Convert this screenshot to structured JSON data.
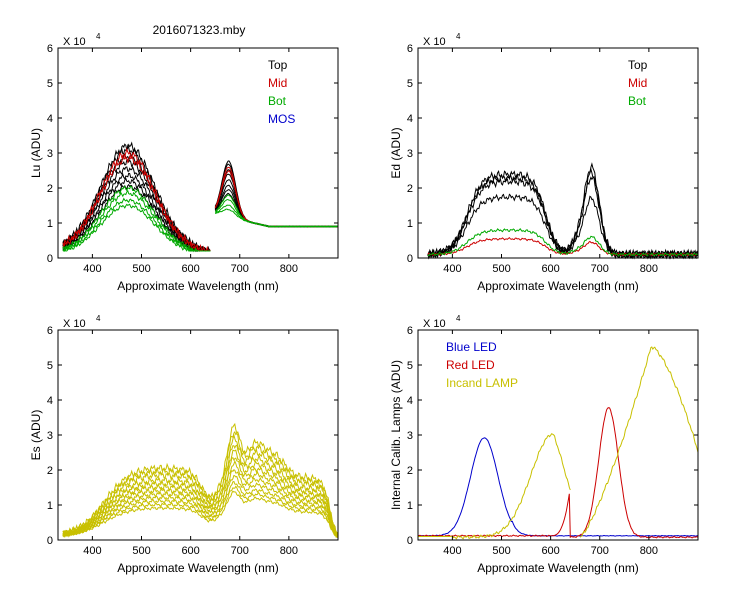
{
  "figure_title": "2016071323.mby",
  "chart_data": [
    {
      "id": "lu",
      "type": "line",
      "ylabel": "Lu (ADU)",
      "xlabel": "Approximate Wavelength (nm)",
      "multiplier": "X 10",
      "exponent": "4",
      "xlim": [
        330,
        900
      ],
      "ylim": [
        0,
        6
      ],
      "xticks": [
        400,
        500,
        600,
        700,
        800
      ],
      "yticks": [
        0,
        1,
        2,
        3,
        4,
        5,
        6
      ],
      "legend": [
        {
          "label": "Top",
          "color": "#000000"
        },
        {
          "label": "Mid",
          "color": "#cc0000"
        },
        {
          "label": "Bot",
          "color": "#00aa00"
        },
        {
          "label": "MOS",
          "color": "#0000cc"
        }
      ],
      "series": [
        {
          "name": "Top",
          "color": "#000000",
          "count": 8,
          "amplitudes": [
            3.2,
            3.1,
            2.9,
            2.75,
            2.55,
            2.35,
            2.2,
            2.05
          ]
        },
        {
          "name": "Mid",
          "color": "#cc0000",
          "count": 2,
          "amplitudes": [
            3.0,
            2.85
          ]
        },
        {
          "name": "Bot",
          "color": "#00aa00",
          "count": 4,
          "amplitudes": [
            2.0,
            1.85,
            1.65,
            1.5
          ]
        }
      ],
      "band1": {
        "start": 340,
        "end": 640,
        "peak": 470
      },
      "band2": {
        "start": 650,
        "end": 900,
        "peak": 680,
        "base": 0.9
      }
    },
    {
      "id": "ed",
      "type": "line",
      "ylabel": "Ed  (ADU)",
      "xlabel": "Approximate Wavelength (nm)",
      "multiplier": "X 10",
      "exponent": "4",
      "xlim": [
        330,
        900
      ],
      "ylim": [
        0,
        6
      ],
      "xticks": [
        400,
        500,
        600,
        700,
        800
      ],
      "yticks": [
        0,
        1,
        2,
        3,
        4,
        5,
        6
      ],
      "legend": [
        {
          "label": "Top",
          "color": "#000000"
        },
        {
          "label": "Mid",
          "color": "#cc0000"
        },
        {
          "label": "Bot",
          "color": "#00aa00"
        }
      ],
      "series": [
        {
          "name": "Top",
          "color": "#000000",
          "count": 4,
          "plateaus": [
            2.3,
            2.2,
            2.1,
            1.65
          ],
          "peaks": [
            2.5,
            2.35,
            2.2,
            1.6
          ]
        },
        {
          "name": "Mid",
          "color": "#cc0000",
          "count": 1,
          "plateaus": [
            0.45
          ],
          "peaks": [
            0.35
          ]
        },
        {
          "name": "Bot",
          "color": "#00aa00",
          "count": 1,
          "plateaus": [
            0.7
          ],
          "peaks": [
            0.5
          ]
        }
      ]
    },
    {
      "id": "es",
      "type": "line",
      "ylabel": "Es  (ADU)",
      "xlabel": "Approximate Wavelength (nm)",
      "multiplier": "X 10",
      "exponent": "4",
      "xlim": [
        330,
        900
      ],
      "ylim": [
        0,
        6
      ],
      "xticks": [
        400,
        500,
        600,
        700,
        800
      ],
      "yticks": [
        0,
        1,
        2,
        3,
        4,
        5,
        6
      ],
      "legend": [],
      "series": [
        {
          "name": "Es",
          "color": "#c8c000",
          "count": 12,
          "plateaus": [
            1.95,
            1.85,
            1.75,
            1.6,
            1.5,
            1.4,
            1.3,
            1.2,
            1.1,
            1.0,
            0.9,
            0.8
          ],
          "peaks": [
            3.5,
            3.3,
            3.1,
            2.9,
            2.7,
            2.5,
            2.3,
            2.1,
            1.9,
            1.7,
            1.55,
            1.4
          ]
        }
      ]
    },
    {
      "id": "lamps",
      "type": "line",
      "ylabel": "Internal Calib. Lamps (ADU)",
      "xlabel": "Approximate Wavelength (nm)",
      "multiplier": "X 10",
      "exponent": "4",
      "xlim": [
        330,
        900
      ],
      "ylim": [
        0,
        6
      ],
      "xticks": [
        400,
        500,
        600,
        700,
        800
      ],
      "yticks": [
        0,
        1,
        2,
        3,
        4,
        5,
        6
      ],
      "legend": [
        {
          "label": "Blue LED",
          "color": "#0000cc"
        },
        {
          "label": "Red LED",
          "color": "#cc0000"
        },
        {
          "label": "Incand LAMP",
          "color": "#c8c000"
        }
      ],
      "series": [
        {
          "name": "Blue LED",
          "color": "#0000cc",
          "peak_x": 465,
          "peak_y": 2.8
        },
        {
          "name": "Red LED",
          "color": "#cc0000",
          "peak_x": 718,
          "peak_y": 3.7
        },
        {
          "name": "Incand LAMP",
          "color": "#c8c000",
          "peak1_x": 605,
          "peak1_y": 2.95,
          "peak2_x": 805,
          "peak2_y": 5.45
        }
      ]
    }
  ]
}
